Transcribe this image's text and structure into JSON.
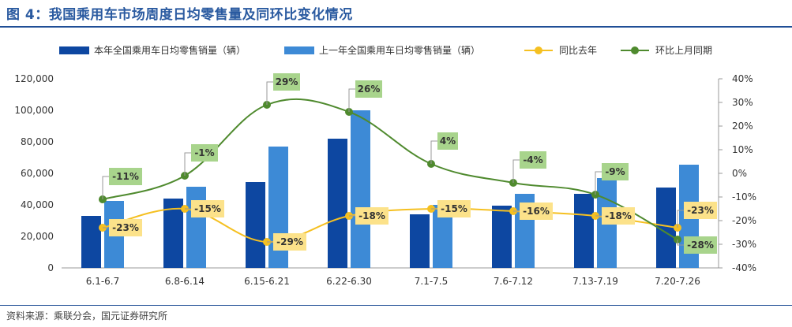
{
  "title": "图 4：我国乘用车市场周度日均零售量及同环比变化情况",
  "source": "资料来源：乘联分会，国元证券研究所",
  "colors": {
    "current": "#0d47a1",
    "previous": "#3d8ad6",
    "yoy": "#f5c021",
    "mom": "#4f8a2e",
    "yoy_label_bg": "#fce28a",
    "mom_label_bg": "#a8d48c",
    "title": "#2a5aa0"
  },
  "chart_data": {
    "type": "bar",
    "categories": [
      "6.1-6.7",
      "6.8-6.14",
      "6.15-6.21",
      "6.22-6.30",
      "7.1-7.5",
      "7.6-7.12",
      "7.13-7.19",
      "7.20-7.26"
    ],
    "series": [
      {
        "name": "本年全国乘用车日均零售销量（辆）",
        "type": "bar",
        "axis": "left",
        "values": [
          33000,
          44000,
          54500,
          82000,
          34000,
          39500,
          47000,
          51000
        ]
      },
      {
        "name": "上一年全国乘用车日均零售销量（辆）",
        "type": "bar",
        "axis": "left",
        "values": [
          42500,
          51500,
          77000,
          100000,
          40000,
          47000,
          57000,
          65500
        ]
      },
      {
        "name": "同比去年",
        "type": "line",
        "axis": "right",
        "values": [
          -23,
          -15,
          -29,
          -18,
          -15,
          -16,
          -18,
          -23
        ],
        "labels": [
          "-23%",
          "-15%",
          "-29%",
          "-18%",
          "-15%",
          "-16%",
          "-18%",
          "-23%"
        ]
      },
      {
        "name": "环比上月同期",
        "type": "line",
        "axis": "right",
        "smooth": true,
        "values": [
          -11,
          -1,
          29,
          26,
          4,
          -4,
          -9,
          -28
        ],
        "labels": [
          "-11%",
          "-1%",
          "29%",
          "26%",
          "4%",
          "-4%",
          "-9%",
          "-28%"
        ]
      }
    ],
    "y_left": {
      "ylim": [
        0,
        120000
      ],
      "ticks": [
        "0",
        "20,000",
        "40,000",
        "60,000",
        "80,000",
        "100,000",
        "120,000"
      ]
    },
    "y_right": {
      "ylim": [
        -40,
        40
      ],
      "ticks": [
        "-40%",
        "-30%",
        "-20%",
        "-10%",
        "0%",
        "10%",
        "20%",
        "30%",
        "40%"
      ]
    },
    "grid": false,
    "legend": "top"
  }
}
